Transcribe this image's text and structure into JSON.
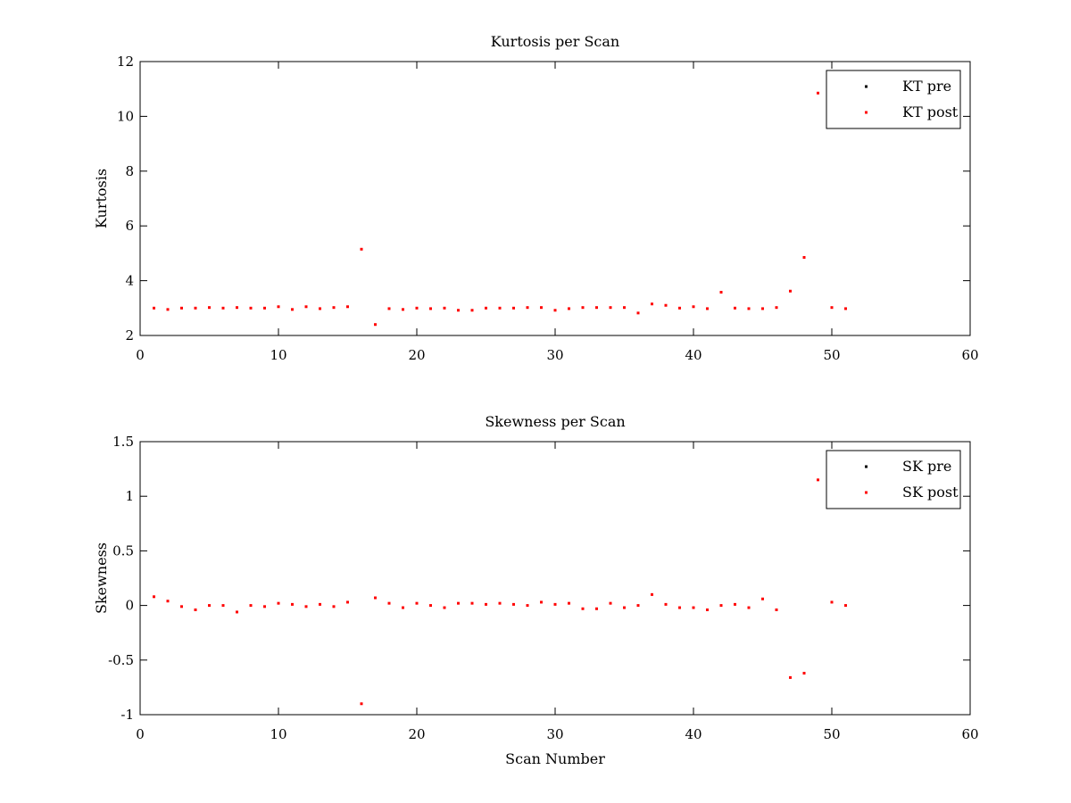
{
  "chart_data": [
    {
      "type": "scatter",
      "title": "Kurtosis per Scan",
      "xlabel": "",
      "ylabel": "Kurtosis",
      "xlim": [
        0,
        60
      ],
      "ylim": [
        2,
        12
      ],
      "xticks": [
        "0",
        "10",
        "20",
        "30",
        "40",
        "50",
        "60"
      ],
      "yticks": [
        "2",
        "4",
        "6",
        "8",
        "10",
        "12"
      ],
      "legend_position": "top-right",
      "series": [
        {
          "name": "KT pre",
          "color": "#000000",
          "x": [],
          "y": []
        },
        {
          "name": "KT post",
          "color": "#ff0000",
          "x": [
            1,
            2,
            3,
            4,
            5,
            6,
            7,
            8,
            9,
            10,
            11,
            12,
            13,
            14,
            15,
            16,
            17,
            18,
            19,
            20,
            21,
            22,
            23,
            24,
            25,
            26,
            27,
            28,
            29,
            30,
            31,
            32,
            33,
            34,
            35,
            36,
            37,
            38,
            39,
            40,
            41,
            42,
            43,
            44,
            45,
            46,
            47,
            48,
            49,
            50,
            51
          ],
          "y": [
            3.0,
            2.95,
            3.0,
            3.0,
            3.02,
            3.0,
            3.02,
            3.0,
            3.0,
            3.05,
            2.95,
            3.05,
            2.98,
            3.02,
            3.05,
            5.15,
            2.4,
            2.98,
            2.95,
            3.0,
            2.98,
            3.0,
            2.92,
            2.92,
            3.0,
            3.0,
            3.0,
            3.02,
            3.02,
            2.92,
            2.98,
            3.02,
            3.02,
            3.02,
            3.02,
            2.82,
            3.15,
            3.1,
            3.0,
            3.05,
            2.98,
            3.58,
            3.0,
            2.98,
            2.98,
            3.02,
            3.62,
            4.85,
            10.85,
            3.02,
            2.98
          ]
        }
      ]
    },
    {
      "type": "scatter",
      "title": "Skewness per Scan",
      "xlabel": "Scan Number",
      "ylabel": "Skewness",
      "xlim": [
        0,
        60
      ],
      "ylim": [
        -1,
        1.5
      ],
      "xticks": [
        "0",
        "10",
        "20",
        "30",
        "40",
        "50",
        "60"
      ],
      "yticks": [
        "-1",
        "-0.5",
        "0",
        "0.5",
        "1",
        "1.5"
      ],
      "legend_position": "top-right",
      "series": [
        {
          "name": "SK pre",
          "color": "#000000",
          "x": [],
          "y": []
        },
        {
          "name": "SK post",
          "color": "#ff0000",
          "x": [
            1,
            2,
            3,
            4,
            5,
            6,
            7,
            8,
            9,
            10,
            11,
            12,
            13,
            14,
            15,
            16,
            17,
            18,
            19,
            20,
            21,
            22,
            23,
            24,
            25,
            26,
            27,
            28,
            29,
            30,
            31,
            32,
            33,
            34,
            35,
            36,
            37,
            38,
            39,
            40,
            41,
            42,
            43,
            44,
            45,
            46,
            47,
            48,
            49,
            50,
            51
          ],
          "y": [
            0.08,
            0.04,
            -0.01,
            -0.04,
            0.0,
            0.0,
            -0.06,
            0.0,
            -0.01,
            0.02,
            0.01,
            -0.01,
            0.01,
            -0.01,
            0.03,
            -0.9,
            0.07,
            0.02,
            -0.02,
            0.02,
            0.0,
            -0.02,
            0.02,
            0.02,
            0.01,
            0.02,
            0.01,
            0.0,
            0.03,
            0.01,
            0.02,
            -0.03,
            -0.03,
            0.02,
            -0.02,
            0.0,
            0.1,
            0.01,
            -0.02,
            -0.02,
            -0.04,
            0.0,
            0.01,
            -0.02,
            0.06,
            -0.04,
            -0.66,
            -0.62,
            1.15,
            0.03,
            0.0
          ]
        }
      ]
    }
  ]
}
